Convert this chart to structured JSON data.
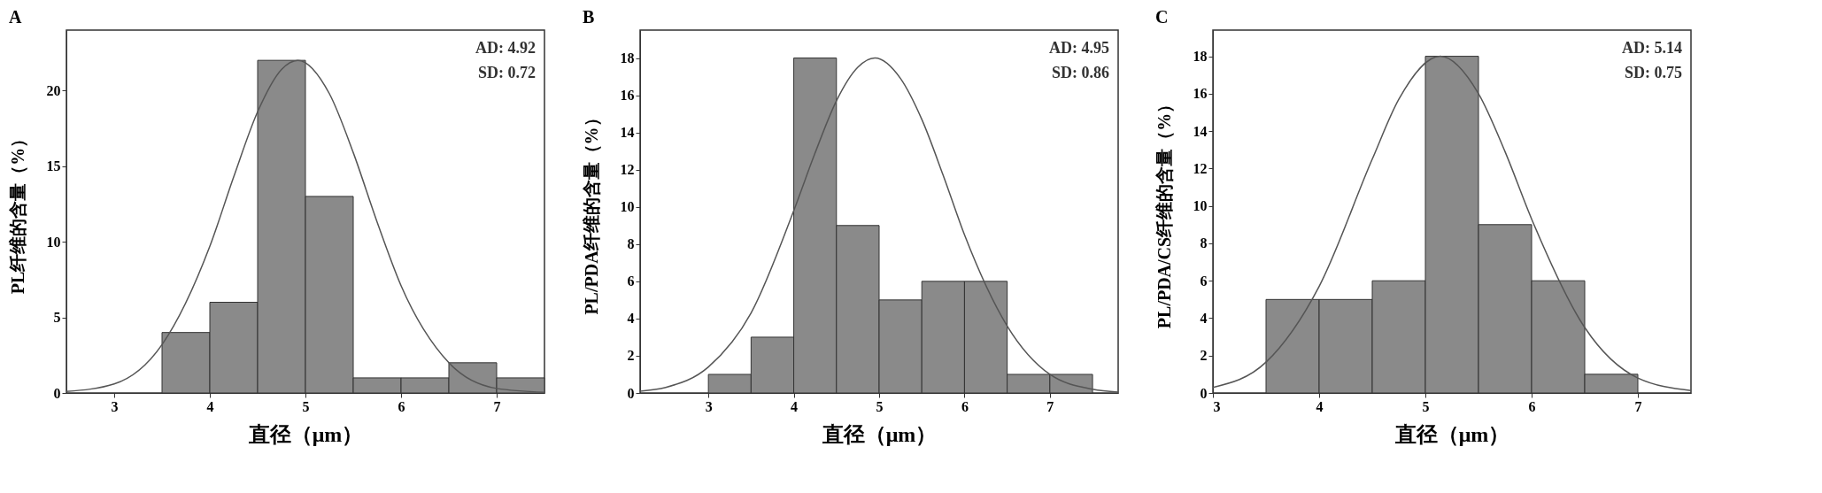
{
  "chart_data": [
    {
      "type": "histogram",
      "title": "A",
      "xlabel": "直径（μm）",
      "ylabel": "PL纤维的含量（%）",
      "bins": [
        3.5,
        4,
        4.5,
        5,
        5.5,
        6,
        6.5,
        7,
        7.5
      ],
      "values": [
        4,
        6,
        22,
        13,
        1,
        1,
        2,
        1
      ],
      "color": "#8a8a8a",
      "series": [
        {
          "type": "line",
          "color": "#555555",
          "x": [
            2.5,
            3,
            3.5,
            4,
            4.25,
            4.5,
            4.75,
            4.92,
            5.25,
            5.5,
            5.75,
            6,
            6.5,
            7,
            7.5
          ],
          "values": [
            0.1,
            0.6,
            3.2,
            9.7,
            14.3,
            18.6,
            21.4,
            22,
            19.8,
            15.9,
            11.3,
            7.1,
            2,
            0.3,
            0.05
          ]
        }
      ],
      "xlim": [
        2.5,
        7.5
      ],
      "xticks": [
        3,
        4,
        5,
        6,
        7
      ],
      "ylim": [
        0,
        24
      ],
      "yticks": [
        0,
        5,
        10,
        15,
        20
      ],
      "annotations": [
        "AD: 4.92",
        "SD: 0.72"
      ]
    },
    {
      "type": "histogram",
      "title": "B",
      "xlabel": "直径（μm）",
      "ylabel": "PL/PDA纤维的含量（%）",
      "bins": [
        3,
        3.5,
        4,
        4.5,
        5,
        5.5,
        6,
        6.5,
        7,
        7.5
      ],
      "values": [
        1,
        3,
        18,
        9,
        5,
        6,
        6,
        1,
        1
      ],
      "color": "#8a8a8a",
      "series": [
        {
          "type": "line",
          "color": "#555555",
          "x": [
            2.2,
            2.5,
            3,
            3.5,
            4,
            4.25,
            4.5,
            4.75,
            4.95,
            5.25,
            5.5,
            5.75,
            6,
            6.5,
            7,
            7.5,
            7.8
          ],
          "values": [
            0.1,
            0.3,
            1.4,
            4.3,
            9.8,
            12.9,
            15.7,
            17.5,
            18,
            16.9,
            14.7,
            11.7,
            8.5,
            3.6,
            1,
            0.2,
            0.05
          ]
        }
      ],
      "xlim": [
        2.2,
        7.8
      ],
      "xticks": [
        3,
        4,
        5,
        6,
        7
      ],
      "ylim": [
        0,
        19.5
      ],
      "yticks": [
        0,
        2,
        4,
        6,
        8,
        10,
        12,
        14,
        16,
        18
      ],
      "annotations": [
        "AD: 4.95",
        "SD: 0.86"
      ]
    },
    {
      "type": "histogram",
      "title": "C",
      "xlabel": "直径（μm）",
      "ylabel": "PL/PDA/CS纤维的含量（%）",
      "bins": [
        3.5,
        4,
        4.5,
        5,
        5.5,
        6,
        6.5,
        7
      ],
      "values": [
        5,
        5,
        6,
        18,
        9,
        6,
        1
      ],
      "color": "#8a8a8a",
      "series": [
        {
          "type": "line",
          "color": "#555555",
          "x": [
            3,
            3.5,
            4,
            4.5,
            4.75,
            5.14,
            5.5,
            5.75,
            6,
            6.5,
            7,
            7.5
          ],
          "values": [
            0.3,
            1.65,
            5.7,
            12.5,
            15.7,
            18,
            16,
            12.9,
            9.3,
            3.5,
            0.8,
            0.13
          ]
        }
      ],
      "xlim": [
        3,
        7.5
      ],
      "xticks": [
        3,
        4,
        5,
        6,
        7
      ],
      "ylim": [
        0,
        19.4
      ],
      "yticks": [
        0,
        2,
        4,
        6,
        8,
        10,
        12,
        14,
        16,
        18
      ],
      "annotations": [
        "AD: 5.14",
        "SD: 0.75"
      ]
    }
  ]
}
